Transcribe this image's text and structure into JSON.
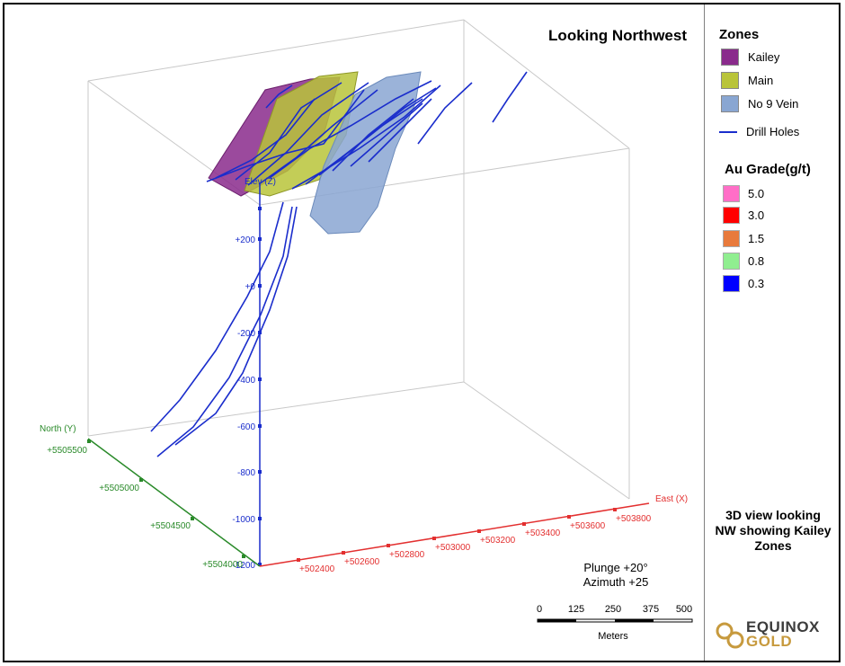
{
  "view": {
    "title": "Looking Northwest",
    "plunge": "Plunge +20°",
    "azimuth": "Azimuth +25"
  },
  "legend": {
    "zones_title": "Zones",
    "zones": [
      {
        "label": "Kailey",
        "color": "#8a2a8c"
      },
      {
        "label": "Main",
        "color": "#b9c43a"
      },
      {
        "label": "No 9 Vein",
        "color": "#89a6d2"
      }
    ],
    "drill_holes_label": "Drill Holes",
    "drill_holes_color": "#1a2dcc",
    "grade_title": "Au Grade(g/t)",
    "grades": [
      {
        "label": "5.0",
        "color": "#ff6ec7"
      },
      {
        "label": "3.0",
        "color": "#ff0000"
      },
      {
        "label": "1.5",
        "color": "#e87a3c"
      },
      {
        "label": "0.8",
        "color": "#90ee90"
      },
      {
        "label": "0.3",
        "color": "#0000ff"
      }
    ]
  },
  "axes": {
    "elev_label": "Elev (Z)",
    "elev_ticks": [
      "+200",
      "+0",
      "-200",
      "-400",
      "-600",
      "-800",
      "-1000",
      "-1200"
    ],
    "north_label": "North (Y)",
    "north_ticks": [
      "+5505500",
      "+5505000",
      "+5504500",
      "+5504000"
    ],
    "east_label": "East (X)",
    "east_ticks": [
      "+502400",
      "+502600",
      "+502800",
      "+503000",
      "+503200",
      "+503400",
      "+503600",
      "+503800"
    ]
  },
  "scale_bar": {
    "ticks": [
      "0",
      "125",
      "250",
      "375",
      "500"
    ],
    "unit": "Meters"
  },
  "caption": [
    "3D view looking",
    "NW showing Kailey",
    "Zones"
  ],
  "logo": {
    "line1": "EQUINOX",
    "line2": "GOLD"
  }
}
